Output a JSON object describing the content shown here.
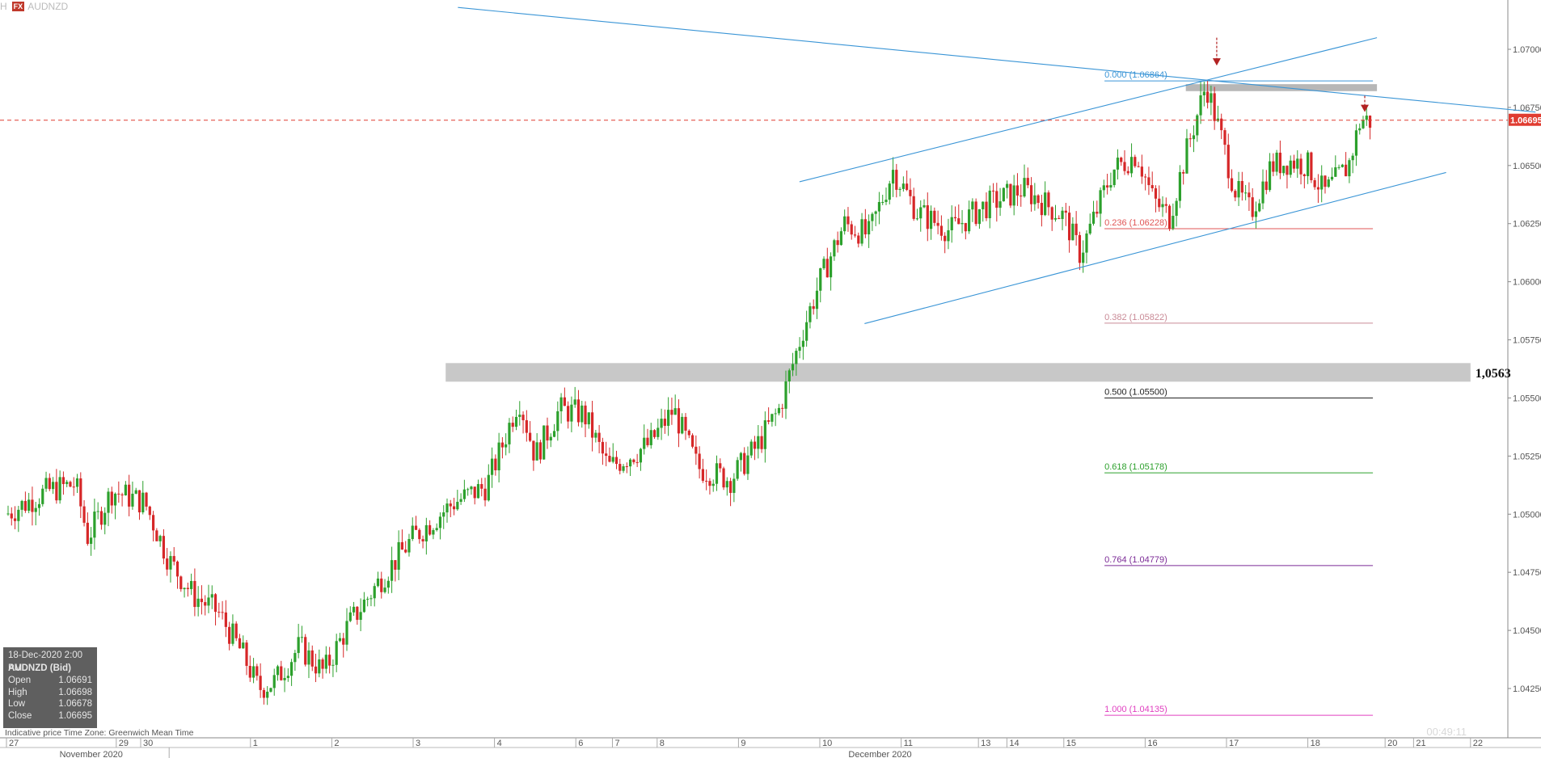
{
  "header": {
    "left_fragment": "H",
    "badge": "FX",
    "symbol": "AUDNZD"
  },
  "ohlc_panel": {
    "date": "18-Dec-2020 2:00 PM",
    "instrument": "AUDNZD (Bid)",
    "rows": [
      {
        "label": "Open",
        "value": "1.06691"
      },
      {
        "label": "High",
        "value": "1.06698"
      },
      {
        "label": "Low",
        "value": "1.06678"
      },
      {
        "label": "Close",
        "value": "1.06695"
      }
    ]
  },
  "footer": {
    "note": "Indicative price    Time Zone: Greenwich Mean Time",
    "clock": "00:49:11"
  },
  "colors": {
    "up": "#2ca02c",
    "down": "#d62728",
    "trend": "#3a95d6",
    "current_price": "#e03c31",
    "zone": "#c8c8c8"
  },
  "chart_data": {
    "type": "candlestick",
    "instrument": "AUDNZD",
    "y_axis": {
      "range": [
        1.0405,
        1.0715
      ],
      "ticks": [
        "1.07000",
        "1.06750",
        "1.06500",
        "1.06250",
        "1.06000",
        "1.05750",
        "1.05500",
        "1.05250",
        "1.05000",
        "1.04750",
        "1.04500",
        "1.04250"
      ]
    },
    "x_axis": {
      "day_ticks": [
        {
          "label": "27",
          "x": 0
        },
        {
          "label": "29",
          "x": 1.35
        },
        {
          "label": "30",
          "x": 1.65
        },
        {
          "label": "1",
          "x": 3
        },
        {
          "label": "2",
          "x": 4
        },
        {
          "label": "3",
          "x": 5
        },
        {
          "label": "4",
          "x": 6
        },
        {
          "label": "6",
          "x": 7
        },
        {
          "label": "7",
          "x": 7.45
        },
        {
          "label": "8",
          "x": 8
        },
        {
          "label": "9",
          "x": 9
        },
        {
          "label": "10",
          "x": 10
        },
        {
          "label": "11",
          "x": 11
        },
        {
          "label": "13",
          "x": 11.95
        },
        {
          "label": "14",
          "x": 12.3
        },
        {
          "label": "15",
          "x": 13
        },
        {
          "label": "16",
          "x": 14
        },
        {
          "label": "17",
          "x": 15
        },
        {
          "label": "18",
          "x": 16
        },
        {
          "label": "20",
          "x": 16.95
        },
        {
          "label": "21",
          "x": 17.3
        },
        {
          "label": "22",
          "x": 18
        }
      ],
      "month_labels": [
        {
          "label": "November 2020",
          "x": 1
        },
        {
          "label": "December 2020",
          "x": 10.7
        }
      ]
    },
    "current_price": {
      "value": 1.06695,
      "label": "1.06695"
    },
    "support_zone": {
      "low": 1.0557,
      "high": 1.0565,
      "label": "1,0563",
      "x_start": 5.4,
      "x_end": 18.0
    },
    "resistance_box": {
      "low": 1.0682,
      "high": 1.0685,
      "x_start": 14.5,
      "x_end": 16.85
    },
    "fibonacci": {
      "x_start": 13.5,
      "x_end": 16.8,
      "levels": [
        {
          "label": "0.000 (1.06864)",
          "value": 1.06864,
          "color": "#3a95d6"
        },
        {
          "label": "0.236 (1.06228)",
          "value": 1.06228,
          "color": "#e05555"
        },
        {
          "label": "0.382 (1.05822)",
          "value": 1.05822,
          "color": "#c98a96"
        },
        {
          "label": "0.500 (1.05500)",
          "value": 1.055,
          "color": "#222222"
        },
        {
          "label": "0.618 (1.05178)",
          "value": 1.05178,
          "color": "#2ca02c"
        },
        {
          "label": "0.764 (1.04779)",
          "value": 1.04779,
          "color": "#7b2a96"
        },
        {
          "label": "1.000 (1.04135)",
          "value": 1.04135,
          "color": "#e040c0"
        }
      ]
    },
    "trendlines": [
      {
        "x1": 5.55,
        "y1": 1.0718,
        "x2": 18.8,
        "y2": 1.0673
      },
      {
        "x1": 9.75,
        "y1": 1.0643,
        "x2": 16.85,
        "y2": 1.0705
      },
      {
        "x1": 10.55,
        "y1": 1.0582,
        "x2": 17.7,
        "y2": 1.0647
      }
    ],
    "arrows": [
      {
        "x": 14.88,
        "y_top": 1.0705,
        "y_tip": 1.0693
      },
      {
        "x": 16.7,
        "y_top": 1.068,
        "y_tip": 1.0673
      }
    ],
    "anchors": [
      [
        0,
        1.05
      ],
      [
        0.5,
        1.051
      ],
      [
        0.85,
        1.0513
      ],
      [
        1.0,
        1.049
      ],
      [
        1.3,
        1.051
      ],
      [
        1.7,
        1.0505
      ],
      [
        2.0,
        1.048
      ],
      [
        2.3,
        1.0465
      ],
      [
        2.6,
        1.0458
      ],
      [
        2.9,
        1.044
      ],
      [
        3.1,
        1.0425
      ],
      [
        3.3,
        1.0428
      ],
      [
        3.6,
        1.0443
      ],
      [
        3.9,
        1.0432
      ],
      [
        4.2,
        1.0452
      ],
      [
        4.6,
        1.0472
      ],
      [
        5.0,
        1.049
      ],
      [
        5.5,
        1.0505
      ],
      [
        5.9,
        1.0512
      ],
      [
        6.1,
        1.053
      ],
      [
        6.3,
        1.055
      ],
      [
        6.5,
        1.0525
      ],
      [
        6.8,
        1.0545
      ],
      [
        7.1,
        1.0543
      ],
      [
        7.4,
        1.052
      ],
      [
        7.9,
        1.053
      ],
      [
        8.2,
        1.0545
      ],
      [
        8.5,
        1.052
      ],
      [
        8.9,
        1.0515
      ],
      [
        9.2,
        1.0528
      ],
      [
        9.5,
        1.0545
      ],
      [
        9.8,
        1.058
      ],
      [
        10.0,
        1.06
      ],
      [
        10.3,
        1.0625
      ],
      [
        10.6,
        1.062
      ],
      [
        10.9,
        1.0648
      ],
      [
        11.2,
        1.063
      ],
      [
        11.6,
        1.0622
      ],
      [
        12.0,
        1.0632
      ],
      [
        12.5,
        1.064
      ],
      [
        13.0,
        1.0628
      ],
      [
        13.2,
        1.0612
      ],
      [
        13.6,
        1.0648
      ],
      [
        13.9,
        1.0655
      ],
      [
        14.1,
        1.0635
      ],
      [
        14.3,
        1.0628
      ],
      [
        14.5,
        1.0655
      ],
      [
        14.75,
        1.0685
      ],
      [
        14.95,
        1.066
      ],
      [
        15.1,
        1.064
      ],
      [
        15.3,
        1.063
      ],
      [
        15.55,
        1.065
      ],
      [
        15.8,
        1.0652
      ],
      [
        16.0,
        1.065
      ],
      [
        16.2,
        1.0638
      ],
      [
        16.5,
        1.065
      ],
      [
        16.65,
        1.067
      ],
      [
        16.78,
        1.0669
      ]
    ]
  }
}
